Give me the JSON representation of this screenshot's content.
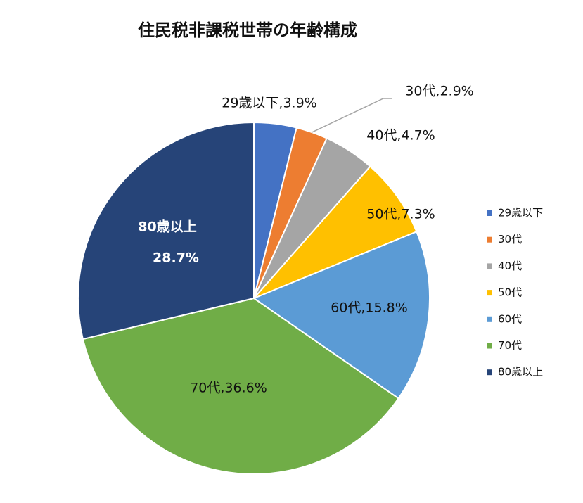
{
  "chart_data": {
    "type": "pie",
    "title": "住民税非課税世帯の年齢構成",
    "categories": [
      "29歳以下",
      "30代",
      "40代",
      "50代",
      "60代",
      "70代",
      "80歳以上"
    ],
    "values": [
      3.9,
      2.9,
      4.7,
      7.3,
      15.8,
      36.6,
      28.7
    ],
    "value_labels": [
      "29歳以下,3.9%",
      "30代,2.9%",
      "40代,4.7%",
      "50代,7.3%",
      "60代,15.8%",
      "70代,36.6%",
      "28.7%"
    ],
    "colors": [
      "#4472c4",
      "#ed7d31",
      "#a5a5a5",
      "#ffc000",
      "#5b9bd5",
      "#70ad47",
      "#264478"
    ],
    "legend": "right"
  }
}
